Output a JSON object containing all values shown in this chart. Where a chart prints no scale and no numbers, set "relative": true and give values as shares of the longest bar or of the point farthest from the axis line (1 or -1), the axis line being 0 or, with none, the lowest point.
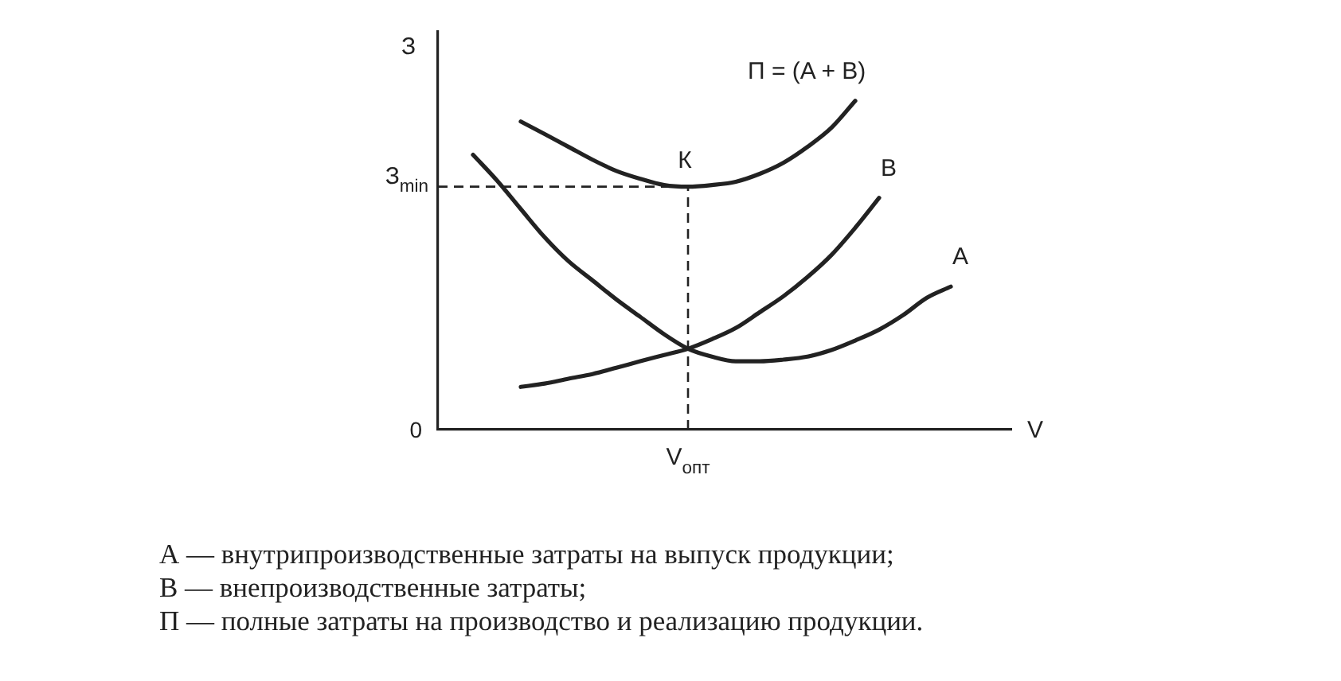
{
  "chart_data": {
    "type": "line",
    "relative": true,
    "ylabel": "З",
    "xlabel": "V",
    "grid": false,
    "legend": false,
    "marker": "none",
    "line_style": "solid",
    "categories": [
      null,
      null,
      null,
      null,
      null,
      null,
      null,
      null,
      null,
      null,
      null,
      null,
      null,
      null,
      null,
      null,
      null,
      null,
      null,
      null,
      null
    ],
    "series": [
      {
        "name": "П = (A + B)",
        "color": "#222222",
        "values": [
          null,
          null,
          0.937,
          0.899,
          0.86,
          0.821,
          0.787,
          0.763,
          0.744,
          0.739,
          0.744,
          0.754,
          0.778,
          0.812,
          0.86,
          0.918,
          1,
          null,
          null,
          null,
          null
        ]
      },
      {
        "name": "B",
        "color": "#222222",
        "values": [
          null,
          null,
          0.13,
          0.14,
          0.155,
          0.169,
          0.188,
          0.208,
          0.227,
          0.246,
          0.275,
          0.309,
          0.357,
          0.406,
          0.464,
          0.531,
          0.614,
          0.705,
          null,
          null,
          null
        ]
      },
      {
        "name": "A",
        "color": "#222222",
        "values": [
          0.836,
          0.758,
          0.671,
          0.585,
          0.512,
          0.454,
          0.396,
          0.343,
          0.29,
          0.246,
          0.222,
          0.208,
          0.208,
          0.213,
          0.222,
          0.242,
          0.271,
          0.304,
          0.348,
          0.401,
          0.435
        ]
      }
    ],
    "ref_lines": [
      {
        "axis": "y",
        "value": 0.739,
        "label": "З$_{min}$",
        "line_style": "dashed"
      }
    ],
    "annotations": [
      "0",
      "К",
      "V$_{опт}$",
      "А — внутрипроизводственные затраты на выпуск продукции;",
      "В — внепроизводственные затраты;",
      "П — полные затраты на производство и реализацию продукции."
    ]
  }
}
